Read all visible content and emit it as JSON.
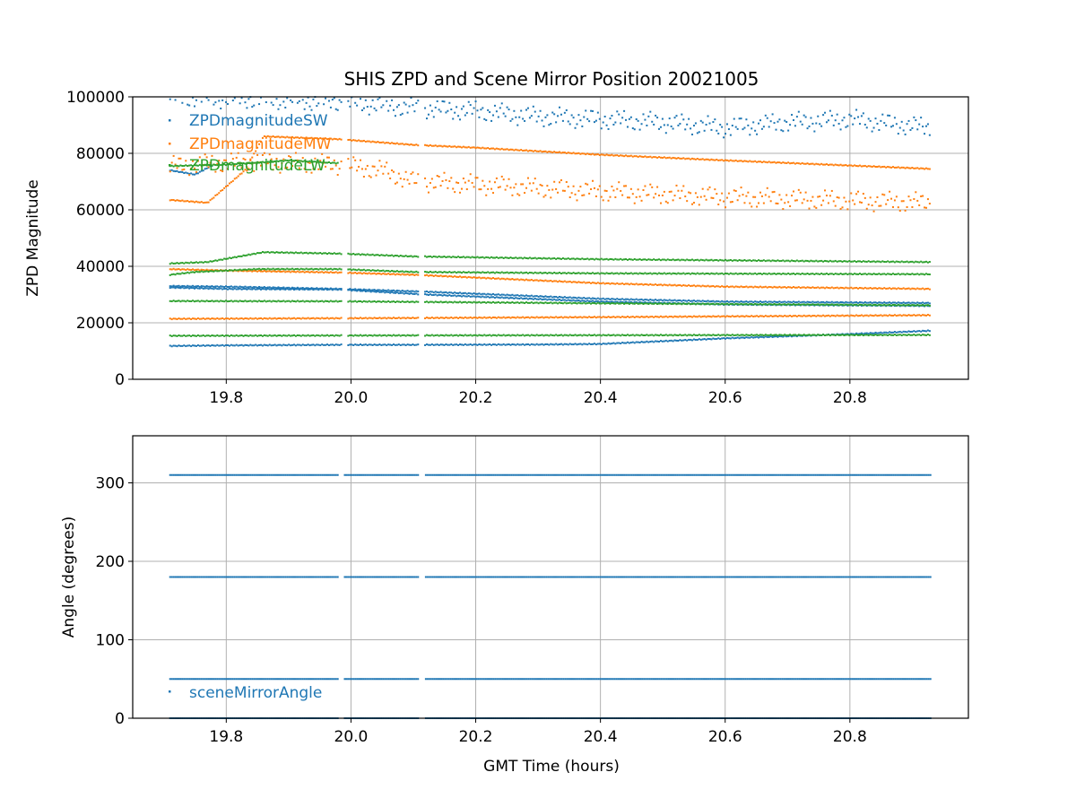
{
  "chart_data": [
    {
      "type": "scatter",
      "title": "SHIS ZPD and Scene Mirror Position 20021005",
      "xlabel": "",
      "ylabel": "ZPD Magnitude",
      "xlim": [
        19.65,
        20.99
      ],
      "ylim": [
        0,
        100000
      ],
      "xticks": [
        19.8,
        20.0,
        20.2,
        20.4,
        20.6,
        20.8
      ],
      "xtick_labels": [
        "19.8",
        "20.0",
        "20.2",
        "20.4",
        "20.6",
        "20.8"
      ],
      "yticks": [
        0,
        20000,
        40000,
        60000,
        80000,
        100000
      ],
      "ytick_labels": [
        "0",
        "20000",
        "40000",
        "60000",
        "80000",
        "100000"
      ],
      "grid": true,
      "legend_position": "top-left",
      "series": [
        {
          "name": "ZPDmagnitudeSW",
          "color": "#1f77b4",
          "bands": [
            [
              [
                19.71,
                11800
              ],
              [
                19.8,
                12000
              ],
              [
                19.98,
                12200
              ],
              [
                20.1,
                12200
              ],
              [
                20.3,
                12300
              ],
              [
                20.4,
                12500
              ],
              [
                20.6,
                14500
              ],
              [
                20.8,
                16000
              ],
              [
                20.93,
                17200
              ]
            ],
            [
              [
                19.71,
                33000
              ],
              [
                19.8,
                32800
              ],
              [
                19.98,
                32000
              ],
              [
                20.12,
                31000
              ],
              [
                20.4,
                28500
              ],
              [
                20.6,
                27500
              ],
              [
                20.93,
                27000
              ]
            ],
            [
              [
                19.71,
                32500
              ],
              [
                19.8,
                32000
              ],
              [
                19.98,
                31800
              ],
              [
                20.12,
                30000
              ],
              [
                20.4,
                27500
              ],
              [
                20.6,
                26500
              ],
              [
                20.93,
                26000
              ]
            ],
            [
              [
                19.71,
                74000
              ],
              [
                19.75,
                72500
              ],
              [
                19.78,
                76000
              ]
            ],
            [
              [
                19.71,
                100000
              ],
              [
                19.9,
                99000
              ],
              [
                20.0,
                98000
              ],
              [
                20.1,
                96000
              ],
              [
                20.2,
                95000
              ],
              [
                20.3,
                93000
              ],
              [
                20.4,
                92000
              ],
              [
                20.5,
                91000
              ],
              [
                20.6,
                89000
              ],
              [
                20.7,
                91000
              ],
              [
                20.8,
                92000
              ],
              [
                20.93,
                89000
              ]
            ]
          ]
        },
        {
          "name": "ZPDmagnitudeMW",
          "color": "#ff7f0e",
          "bands": [
            [
              [
                19.71,
                21400
              ],
              [
                19.98,
                21600
              ],
              [
                20.1,
                21700
              ],
              [
                20.4,
                22000
              ],
              [
                20.93,
                22700
              ]
            ],
            [
              [
                19.71,
                39000
              ],
              [
                19.8,
                38500
              ],
              [
                19.98,
                37800
              ],
              [
                20.1,
                37000
              ],
              [
                20.4,
                34000
              ],
              [
                20.6,
                32800
              ],
              [
                20.93,
                32000
              ]
            ],
            [
              [
                19.71,
                63500
              ],
              [
                19.77,
                62500
              ],
              [
                19.83,
                74000
              ],
              [
                19.86,
                86000
              ],
              [
                19.98,
                85000
              ],
              [
                20.1,
                83000
              ],
              [
                20.2,
                82000
              ],
              [
                20.4,
                79500
              ],
              [
                20.6,
                77500
              ],
              [
                20.93,
                74500
              ]
            ],
            [
              [
                19.71,
                75500
              ],
              [
                19.78,
                76500
              ],
              [
                19.85,
                77000
              ],
              [
                19.98,
                76000
              ],
              [
                20.05,
                74000
              ],
              [
                20.1,
                70000
              ],
              [
                20.2,
                69000
              ],
              [
                20.4,
                66500
              ],
              [
                20.6,
                64500
              ],
              [
                20.93,
                62500
              ]
            ]
          ]
        },
        {
          "name": "ZPDmagnitudeLW",
          "color": "#2ca02c",
          "bands": [
            [
              [
                19.71,
                15400
              ],
              [
                19.98,
                15500
              ],
              [
                20.4,
                15600
              ],
              [
                20.93,
                15700
              ]
            ],
            [
              [
                19.71,
                27700
              ],
              [
                19.98,
                27600
              ],
              [
                20.4,
                26900
              ],
              [
                20.93,
                26200
              ]
            ],
            [
              [
                19.71,
                37000
              ],
              [
                19.75,
                38000
              ],
              [
                19.85,
                39000
              ],
              [
                19.98,
                39000
              ],
              [
                20.1,
                38000
              ],
              [
                20.4,
                37500
              ],
              [
                20.93,
                37200
              ]
            ],
            [
              [
                19.71,
                41000
              ],
              [
                19.77,
                41500
              ],
              [
                19.86,
                45000
              ],
              [
                19.98,
                44500
              ],
              [
                20.1,
                43500
              ],
              [
                20.4,
                42500
              ],
              [
                20.93,
                41500
              ]
            ],
            [
              [
                19.71,
                75500
              ],
              [
                19.8,
                76000
              ],
              [
                19.9,
                77500
              ],
              [
                19.98,
                76500
              ]
            ]
          ]
        }
      ]
    },
    {
      "type": "scatter",
      "title": "",
      "xlabel": "GMT Time (hours)",
      "ylabel": "Angle (degrees)",
      "xlim": [
        19.65,
        20.99
      ],
      "ylim": [
        0,
        360
      ],
      "xticks": [
        19.8,
        20.0,
        20.2,
        20.4,
        20.6,
        20.8
      ],
      "xtick_labels": [
        "19.8",
        "20.0",
        "20.2",
        "20.4",
        "20.6",
        "20.8"
      ],
      "yticks": [
        0,
        100,
        200,
        300
      ],
      "ytick_labels": [
        "0",
        "100",
        "200",
        "300"
      ],
      "grid": true,
      "legend_position": "bottom-left",
      "series": [
        {
          "name": "sceneMirrorAngle",
          "color": "#1f77b4",
          "levels": [
            0,
            50,
            180,
            310
          ],
          "segments": [
            [
              19.71,
              19.98
            ],
            [
              19.99,
              20.11
            ],
            [
              20.12,
              20.93
            ]
          ]
        }
      ]
    }
  ]
}
